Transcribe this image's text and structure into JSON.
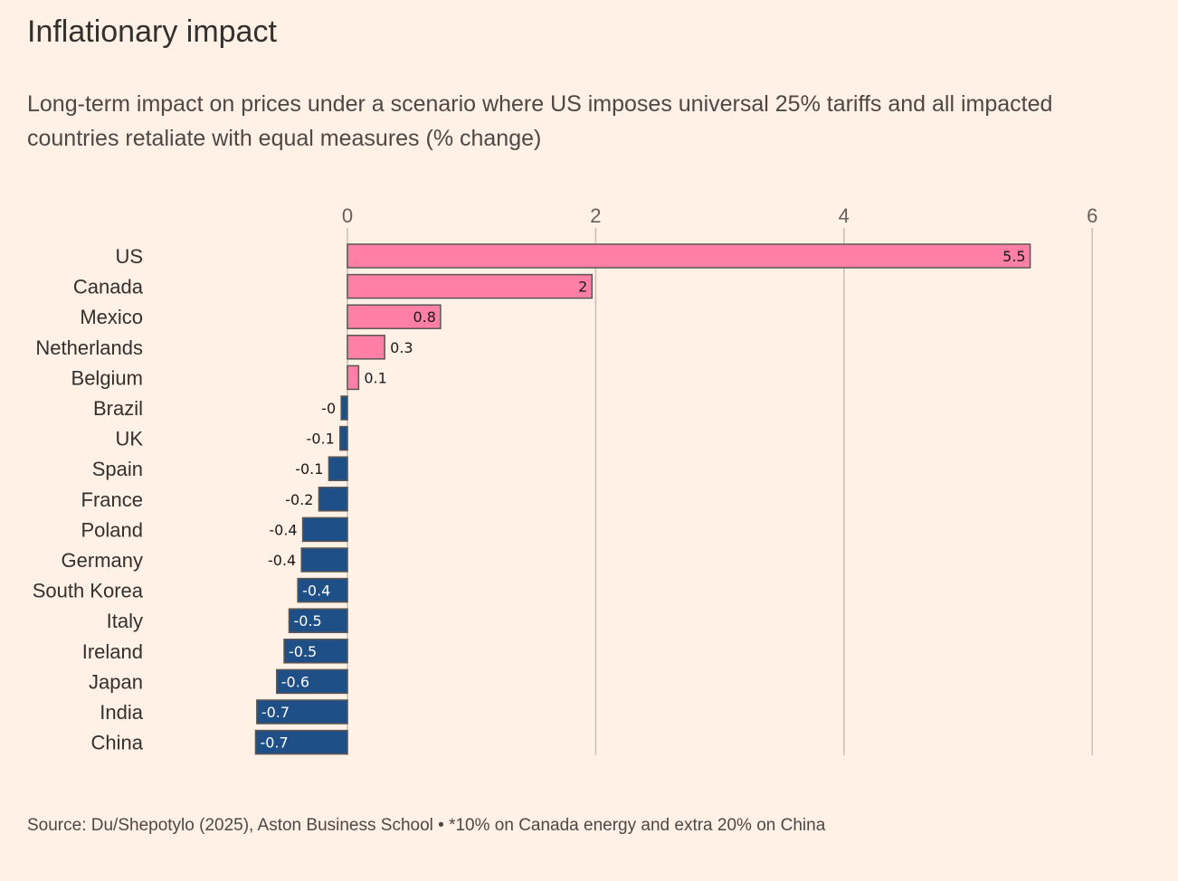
{
  "title": "Inflationary impact",
  "subtitle": "Long-term impact on prices under a scenario where US imposes universal 25% tariffs and all impacted countries retaliate with equal measures (% change)",
  "source": "Source: Du/Shepotylo (2025), Aston Business School • *10% on Canada energy and extra 20% on China",
  "colors": {
    "positive": "#ff7fa6",
    "negative": "#1e4f86",
    "bar_border": "#5a5553",
    "grid": "#c9bfb6",
    "label_dark": "#1a1817",
    "label_light": "#ffffff"
  },
  "chart_data": {
    "type": "bar",
    "orientation": "horizontal",
    "xlim": [
      -0.8,
      6
    ],
    "ticks": [
      0,
      2,
      4,
      6
    ],
    "grid": true,
    "categories": [
      "US",
      "Canada",
      "Mexico",
      "Netherlands",
      "Belgium",
      "Brazil",
      "UK",
      "Spain",
      "France",
      "Poland",
      "Germany",
      "South Korea",
      "Italy",
      "Ireland",
      "Japan",
      "India",
      "China"
    ],
    "values": [
      5.5,
      1.97,
      0.75,
      0.3,
      0.09,
      -0.05,
      -0.06,
      -0.15,
      -0.23,
      -0.36,
      -0.37,
      -0.4,
      -0.47,
      -0.51,
      -0.57,
      -0.73,
      -0.74
    ],
    "labels": [
      "5.5",
      "2",
      "0.8",
      "0.3",
      "0.1",
      "-0",
      "-0.1",
      "-0.1",
      "-0.2",
      "-0.4",
      "-0.4",
      "-0.4",
      "-0.5",
      "-0.5",
      "-0.6",
      "-0.7",
      "-0.7"
    ]
  }
}
